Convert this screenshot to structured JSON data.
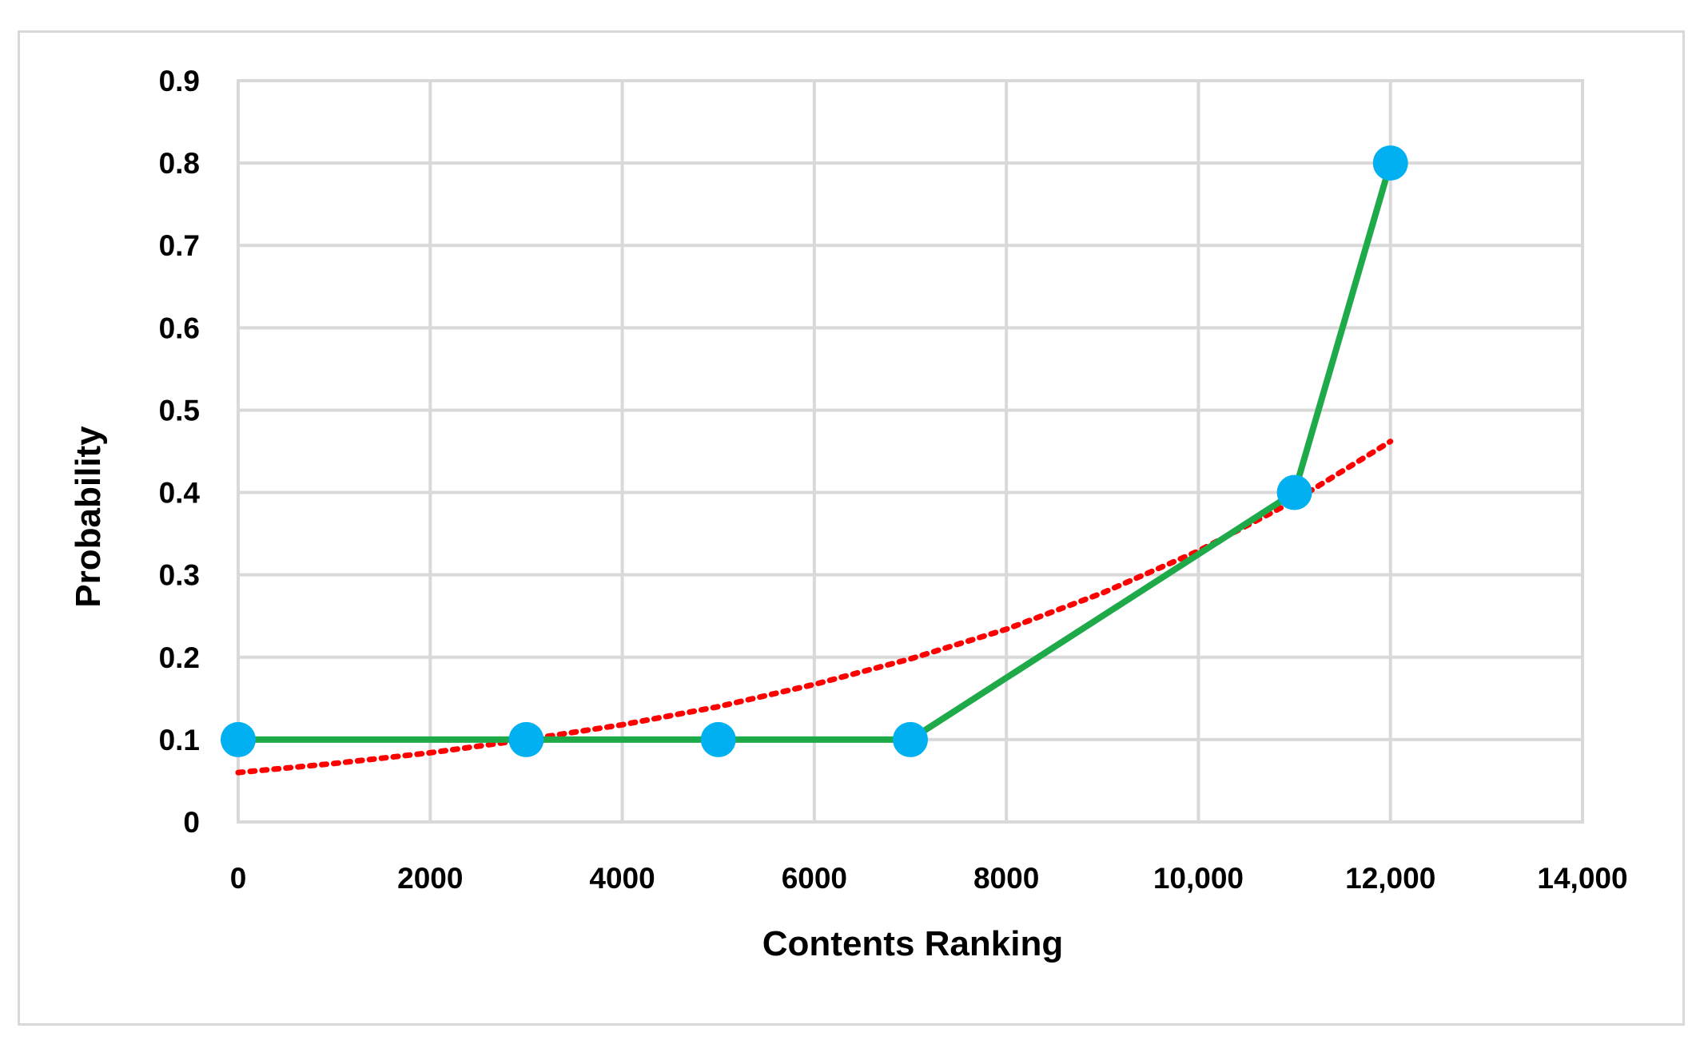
{
  "chart_data": {
    "type": "line",
    "xlabel": "Contents Ranking",
    "ylabel": "Probability",
    "xlim": [
      0,
      14000
    ],
    "ylim": [
      0,
      0.9
    ],
    "x_ticks": [
      0,
      2000,
      4000,
      6000,
      8000,
      10000,
      12000,
      14000
    ],
    "x_tick_labels": [
      "0",
      "2000",
      "4000",
      "6000",
      "8000",
      "10,000",
      "12,000",
      "14,000"
    ],
    "y_ticks": [
      0,
      0.1,
      0.2,
      0.3,
      0.4,
      0.5,
      0.6,
      0.7,
      0.8,
      0.9
    ],
    "y_tick_labels": [
      "0",
      "0.1",
      "0.2",
      "0.3",
      "0.4",
      "0.5",
      "0.6",
      "0.7",
      "0.8",
      "0.9"
    ],
    "grid": true,
    "legend": "none",
    "series": [
      {
        "style": "solid line with markers",
        "line_color": "#1faa4a",
        "marker_color": "#00b0f0",
        "x": [
          0,
          3000,
          5000,
          7000,
          11000,
          12000
        ],
        "y": [
          0.1,
          0.1,
          0.1,
          0.1,
          0.4,
          0.8
        ]
      },
      {
        "style": "dotted exponential trendline",
        "line_color": "#ff0000",
        "x": [
          0,
          1000,
          2000,
          3000,
          4000,
          5000,
          6000,
          7000,
          8000,
          9000,
          10000,
          11000,
          12000
        ],
        "y": [
          0.06,
          0.071,
          0.084,
          0.1,
          0.118,
          0.14,
          0.167,
          0.198,
          0.234,
          0.278,
          0.329,
          0.39,
          0.462
        ]
      }
    ]
  }
}
